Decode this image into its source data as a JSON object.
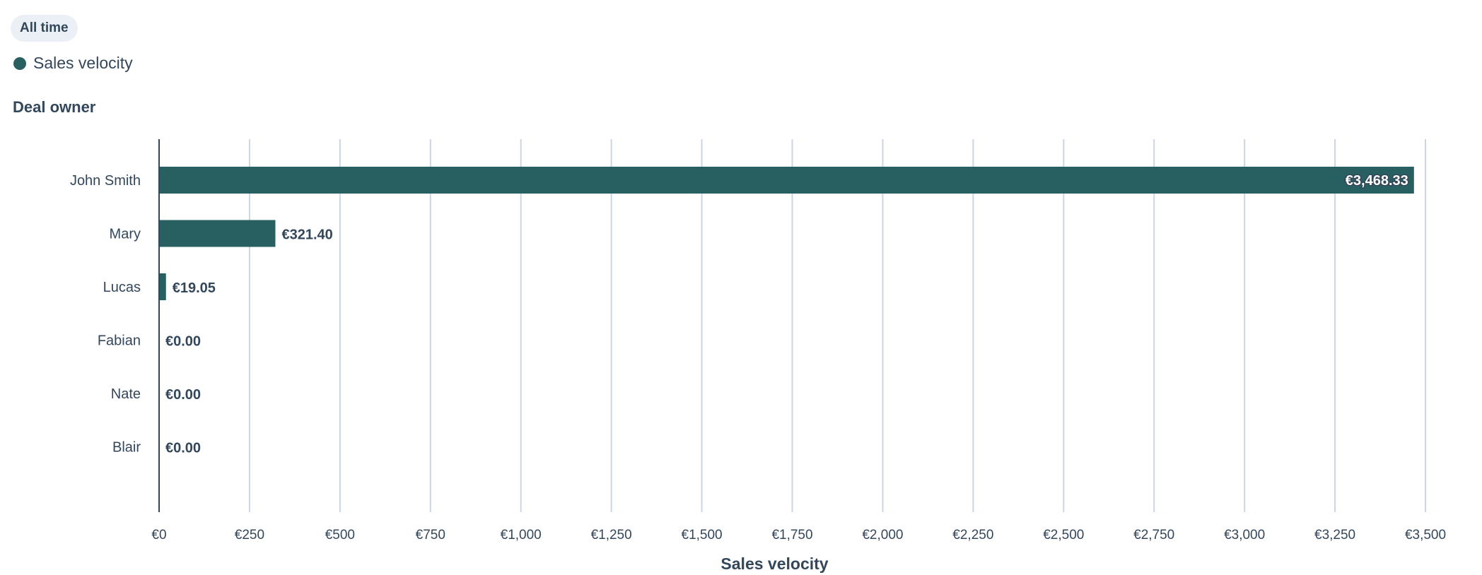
{
  "filter": {
    "label": "All time"
  },
  "legend": {
    "label": "Sales velocity",
    "color": "#285f61"
  },
  "chart_data": {
    "type": "bar",
    "orientation": "horizontal",
    "ylabel": "Deal owner",
    "xlabel": "Sales velocity",
    "categories": [
      "John Smith",
      "Mary",
      "Lucas",
      "Fabian",
      "Nate",
      "Blair"
    ],
    "series": [
      {
        "name": "Sales velocity",
        "color": "#285f61",
        "values": [
          3468.33,
          321.4,
          19.05,
          0.0,
          0.0,
          0.0
        ],
        "labels": [
          "€3,468.33",
          "€321.40",
          "€19.05",
          "€0.00",
          "€0.00",
          "€0.00"
        ]
      }
    ],
    "xlim": [
      0,
      3500
    ],
    "xticks": [
      0,
      250,
      500,
      750,
      1000,
      1250,
      1500,
      1750,
      2000,
      2250,
      2500,
      2750,
      3000,
      3250,
      3500
    ],
    "xtick_labels": [
      "€0",
      "€250",
      "€500",
      "€750",
      "€1,000",
      "€1,250",
      "€1,500",
      "€1,750",
      "€2,000",
      "€2,250",
      "€2,500",
      "€2,750",
      "€3,000",
      "€3,250",
      "€3,500"
    ],
    "grid": true,
    "legend_position": "top-left"
  }
}
